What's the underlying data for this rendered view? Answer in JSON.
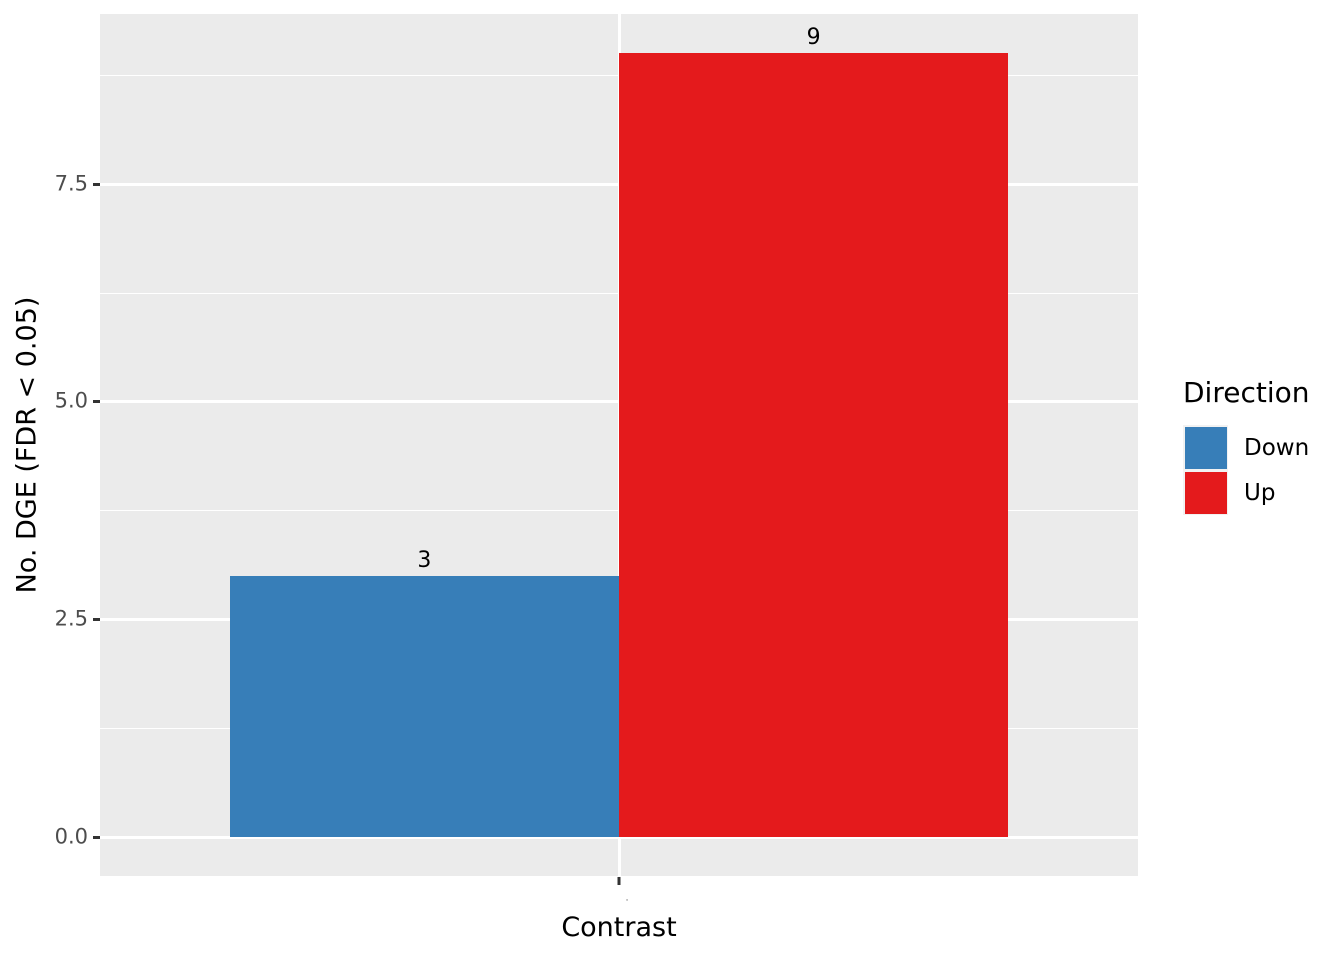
{
  "chart_data": {
    "type": "bar",
    "title": "",
    "xlabel": "Contrast",
    "ylabel": "No. DGE (FDR < 0.05)",
    "categories": [
      "·"
    ],
    "series": [
      {
        "name": "Down",
        "values": [
          3
        ],
        "color": "#377EB8"
      },
      {
        "name": "Up",
        "values": [
          9
        ],
        "color": "#E41A1C"
      }
    ],
    "bar_value_labels": [
      "3",
      "9"
    ],
    "yticks": [
      0.0,
      2.5,
      5.0,
      7.5
    ],
    "ytick_labels": [
      "0.0",
      "2.5",
      "5.0",
      "7.5"
    ],
    "ylim": [
      -0.45,
      9.45
    ],
    "grid": true,
    "legend_position": "right",
    "panel_background": "#EBEBEB",
    "grid_color": "#FFFFFF",
    "tick_color": "#333333",
    "tick_label_color": "#4D4D4D"
  },
  "legend": {
    "title": "Direction",
    "entries": [
      {
        "label": "Down",
        "color": "#377EB8"
      },
      {
        "label": "Up",
        "color": "#E41A1C"
      }
    ]
  }
}
